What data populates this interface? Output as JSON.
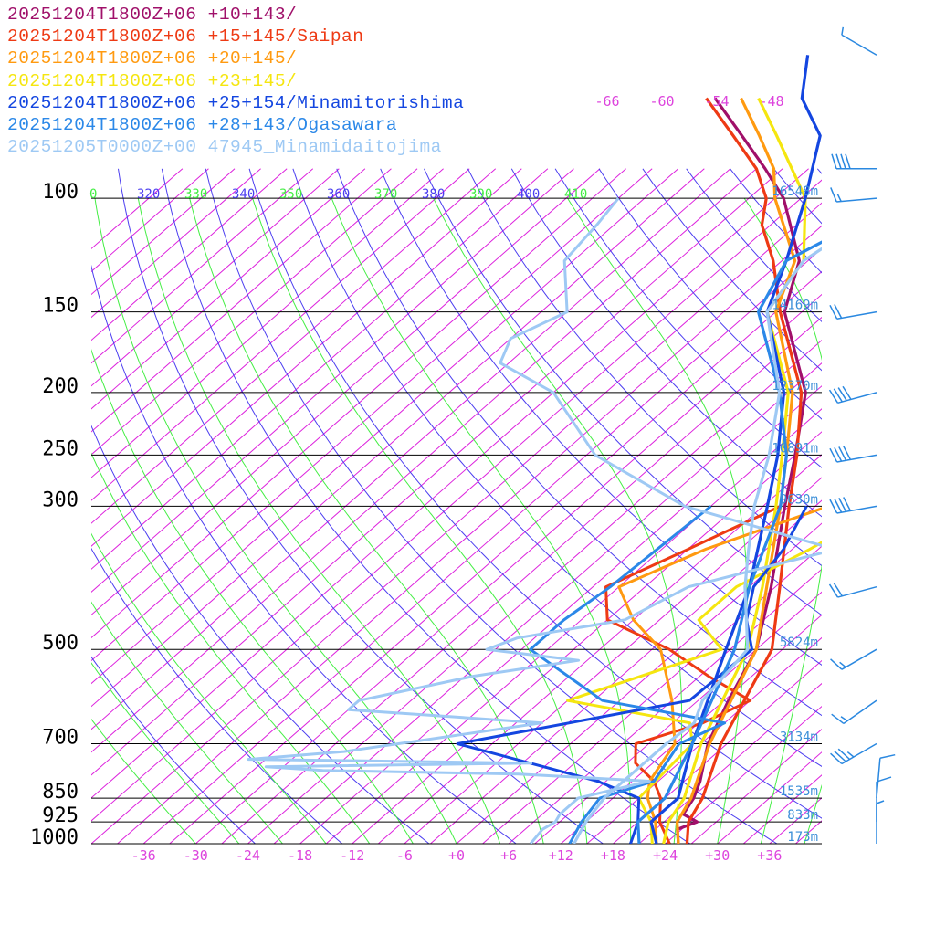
{
  "chart_data": {
    "type": "skew-t",
    "xlim": [
      -42,
      42
    ],
    "ylim_hPa": [
      1000,
      100
    ],
    "pressure_labels": [
      100,
      150,
      200,
      250,
      300,
      500,
      700,
      850,
      925,
      1000
    ],
    "temperature_tick_labels": [
      "-36",
      "-30",
      "-24",
      "-18",
      "-12",
      "-6",
      "+0",
      "+6",
      "+12",
      "+18",
      "+24",
      "+30",
      "+36"
    ],
    "temperature_top_labels": [
      "-66",
      "-60",
      "-54",
      "-48"
    ],
    "theta_labels": [
      "0",
      "320",
      "330",
      "340",
      "350",
      "360",
      "370",
      "380",
      "390",
      "400",
      "410"
    ],
    "height_labels": [
      {
        "p": 100,
        "text": "16548m"
      },
      {
        "p": 150,
        "text": "14169m"
      },
      {
        "p": 200,
        "text": "12370m"
      },
      {
        "p": 250,
        "text": "10891m"
      },
      {
        "p": 300,
        "text": "9630m"
      },
      {
        "p": 500,
        "text": "5824m"
      },
      {
        "p": 700,
        "text": "3134m"
      },
      {
        "p": 850,
        "text": "1535m"
      },
      {
        "p": 925,
        "text": "833m"
      },
      {
        "p": 1000,
        "text": "173m"
      }
    ],
    "series": [
      {
        "name": "20251204T1800Z+06 +10+143/",
        "color": "#a0106a",
        "temperature": [
          [
            1000,
            25.5
          ],
          [
            950,
            23.5
          ],
          [
            925,
            24.8
          ],
          [
            900,
            22.2
          ],
          [
            850,
            21.3
          ],
          [
            800,
            19.8
          ],
          [
            700,
            15.8
          ],
          [
            600,
            12.5
          ],
          [
            500,
            9.0
          ],
          [
            400,
            2.5
          ],
          [
            300,
            -6.5
          ],
          [
            250,
            -12
          ],
          [
            200,
            -19
          ],
          [
            150,
            -32
          ],
          [
            125,
            -37
          ],
          [
            100,
            -47
          ],
          [
            90,
            -53
          ],
          [
            80,
            -60
          ],
          [
            70,
            -68
          ]
        ],
        "dewpoint": []
      },
      {
        "name": "20251204T1800Z+06 +15+145/Saipan",
        "color": "#ee3a14",
        "temperature": [
          [
            1000,
            26.5
          ],
          [
            925,
            23.8
          ],
          [
            850,
            22.3
          ],
          [
            700,
            17.3
          ],
          [
            500,
            10.8
          ],
          [
            400,
            3.5
          ],
          [
            300,
            -6.0
          ],
          [
            250,
            -11.8
          ],
          [
            200,
            -19.5
          ],
          [
            150,
            -32.5
          ],
          [
            125,
            -40
          ],
          [
            110,
            -46
          ],
          [
            100,
            -49
          ],
          [
            90,
            -54
          ],
          [
            80,
            -61
          ],
          [
            70,
            -69
          ]
        ],
        "dewpoint": [
          [
            1000,
            24.5
          ],
          [
            925,
            20.5
          ],
          [
            850,
            17.5
          ],
          [
            800,
            14.5
          ],
          [
            750,
            10.0
          ],
          [
            700,
            7.5
          ],
          [
            650,
            12.5
          ],
          [
            600,
            15.0
          ],
          [
            550,
            7.0
          ],
          [
            500,
            -1.0
          ],
          [
            450,
            -12.0
          ],
          [
            400,
            -16.5
          ],
          [
            350,
            -12.0
          ],
          [
            300,
            -7.0
          ]
        ]
      },
      {
        "name": "20251204T1800Z+06 +20+145/",
        "color": "#ff9a10",
        "temperature": [
          [
            1000,
            25.5
          ],
          [
            925,
            22.5
          ],
          [
            850,
            21.0
          ],
          [
            700,
            16.0
          ],
          [
            500,
            9.0
          ],
          [
            400,
            2.0
          ],
          [
            300,
            -7.0
          ],
          [
            250,
            -13.0
          ],
          [
            200,
            -20.5
          ],
          [
            150,
            -33.0
          ],
          [
            125,
            -37.5
          ],
          [
            100,
            -48.0
          ],
          [
            90,
            -52.0
          ],
          [
            80,
            -58.0
          ],
          [
            70,
            -65.0
          ]
        ],
        "dewpoint": [
          [
            1000,
            23.0
          ],
          [
            925,
            20.0
          ],
          [
            850,
            16.0
          ],
          [
            800,
            14.0
          ],
          [
            700,
            12.0
          ],
          [
            600,
            6.0
          ],
          [
            500,
            -2.0
          ],
          [
            450,
            -9.0
          ],
          [
            400,
            -15.0
          ],
          [
            350,
            -10.0
          ],
          [
            300,
            -1.5
          ]
        ]
      },
      {
        "name": "20251204T1800Z+06 +23+145/",
        "color": "#f5e60f",
        "temperature": [
          [
            1000,
            23.8
          ],
          [
            925,
            21.5
          ],
          [
            850,
            20.2
          ],
          [
            700,
            15.0
          ],
          [
            500,
            8.0
          ],
          [
            400,
            1.5
          ],
          [
            300,
            -7.5
          ],
          [
            250,
            -13.5
          ],
          [
            200,
            -21.0
          ],
          [
            150,
            -34.0
          ],
          [
            125,
            -36.5
          ],
          [
            100,
            -44.5
          ],
          [
            80,
            -56.0
          ],
          [
            70,
            -63.0
          ]
        ],
        "dewpoint": [
          [
            1000,
            22.5
          ],
          [
            925,
            19.5
          ],
          [
            850,
            15.0
          ],
          [
            700,
            14.0
          ],
          [
            650,
            11.0
          ],
          [
            600,
            -6.0
          ],
          [
            500,
            5.0
          ],
          [
            450,
            -1.5
          ],
          [
            400,
            -1.5
          ],
          [
            350,
            2.0
          ],
          [
            300,
            5.0
          ]
        ]
      },
      {
        "name": "20251204T1800Z+06 +25+154/Minamitorishima",
        "color": "#1446e0",
        "temperature": [
          [
            1000,
            23.0
          ],
          [
            925,
            19.5
          ],
          [
            850,
            19.5
          ],
          [
            700,
            14.0
          ],
          [
            500,
            5.5
          ],
          [
            400,
            0.0
          ],
          [
            300,
            -8.5
          ],
          [
            250,
            -14.0
          ],
          [
            200,
            -21.5
          ],
          [
            150,
            -34.0
          ],
          [
            125,
            -38.5
          ],
          [
            100,
            -44.5
          ],
          [
            80,
            -51.0
          ],
          [
            70,
            -58.0
          ],
          [
            60,
            -63.0
          ]
        ],
        "dewpoint": [
          [
            1000,
            20.0
          ],
          [
            925,
            18.0
          ],
          [
            850,
            15.0
          ],
          [
            800,
            8.0
          ],
          [
            700,
            -13.0
          ],
          [
            600,
            8.0
          ],
          [
            500,
            8.5
          ],
          [
            450,
            4.0
          ],
          [
            400,
            0.5
          ],
          [
            350,
            -1.0
          ],
          [
            300,
            -4.0
          ]
        ]
      },
      {
        "name": "20251204T1800Z+06 +28+143/Ogasawara",
        "color": "#2b88e8",
        "temperature": [
          [
            1000,
            21.0
          ],
          [
            925,
            18.0
          ],
          [
            850,
            18.0
          ],
          [
            700,
            14.0
          ],
          [
            500,
            6.5
          ],
          [
            400,
            0.0
          ],
          [
            300,
            -7.0
          ],
          [
            250,
            -13.0
          ],
          [
            200,
            -22.0
          ],
          [
            150,
            -35.0
          ],
          [
            125,
            -38.5
          ],
          [
            100,
            -33.0
          ],
          [
            80,
            -37.5
          ],
          [
            70,
            -36.5
          ],
          [
            60,
            -40.0
          ]
        ],
        "dewpoint": [
          [
            1000,
            13.0
          ],
          [
            925,
            11.5
          ],
          [
            850,
            10.5
          ],
          [
            800,
            14.5
          ],
          [
            700,
            12.5
          ],
          [
            650,
            15.0
          ],
          [
            600,
            -2.0
          ],
          [
            500,
            -17.0
          ],
          [
            450,
            -17.0
          ],
          [
            400,
            -16.0
          ],
          [
            300,
            -15.0
          ]
        ]
      },
      {
        "name": "20251205T0000Z+00 47945_Minamidaitojima",
        "color": "#9ec9f4",
        "temperature": [
          [
            1000,
            13.5
          ],
          [
            925,
            12.0
          ],
          [
            850,
            11.0
          ],
          [
            750,
            11.0
          ],
          [
            700,
            11.0
          ],
          [
            650,
            11.5
          ],
          [
            600,
            9.5
          ],
          [
            500,
            8.0
          ],
          [
            400,
            -0.5
          ],
          [
            350,
            -5.0
          ],
          [
            300,
            -10.0
          ],
          [
            250,
            -15.0
          ],
          [
            200,
            -22.0
          ],
          [
            150,
            -34.0
          ],
          [
            125,
            -36.5
          ],
          [
            110,
            -35.0
          ],
          [
            100,
            -33.0
          ]
        ],
        "dewpoint": [
          [
            1000,
            8.5
          ],
          [
            950,
            8.0
          ],
          [
            925,
            8.5
          ],
          [
            900,
            8.0
          ],
          [
            850,
            8.0
          ],
          [
            800,
            14.0
          ],
          [
            780,
            -2.0
          ],
          [
            770,
            -25.0
          ],
          [
            760,
            -32.0
          ],
          [
            750,
            -2.0
          ],
          [
            740,
            -35.0
          ],
          [
            720,
            -25.0
          ],
          [
            650,
            -6.0
          ],
          [
            620,
            -30.0
          ],
          [
            600,
            -30.0
          ],
          [
            550,
            -20.0
          ],
          [
            520,
            -10.0
          ],
          [
            500,
            -22.0
          ],
          [
            480,
            -20.0
          ],
          [
            450,
            -10.0
          ],
          [
            400,
            -7.0
          ],
          [
            350,
            5.0
          ],
          [
            300,
            -18.0
          ],
          [
            250,
            -35.0
          ],
          [
            200,
            -48.0
          ],
          [
            180,
            -58.0
          ],
          [
            165,
            -60.0
          ],
          [
            150,
            -57.0
          ],
          [
            125,
            -64.0
          ],
          [
            110,
            -65.0
          ],
          [
            100,
            -66.0
          ]
        ]
      }
    ],
    "wind_barbs": [
      {
        "p": 60,
        "direction_deg": 300,
        "speed_kt": 5
      },
      {
        "p": 90,
        "direction_deg": 270,
        "speed_kt": 40
      },
      {
        "p": 100,
        "direction_deg": 265,
        "speed_kt": 15
      },
      {
        "p": 150,
        "direction_deg": 260,
        "speed_kt": 20
      },
      {
        "p": 200,
        "direction_deg": 255,
        "speed_kt": 40
      },
      {
        "p": 250,
        "direction_deg": 260,
        "speed_kt": 40
      },
      {
        "p": 300,
        "direction_deg": 260,
        "speed_kt": 40
      },
      {
        "p": 400,
        "direction_deg": 255,
        "speed_kt": 20
      },
      {
        "p": 500,
        "direction_deg": 240,
        "speed_kt": 15
      },
      {
        "p": 600,
        "direction_deg": 235,
        "speed_kt": 15
      },
      {
        "p": 700,
        "direction_deg": 240,
        "speed_kt": 35
      },
      {
        "p": 850,
        "direction_deg": 5,
        "speed_kt": 10
      },
      {
        "p": 925,
        "direction_deg": 360,
        "speed_kt": 10
      },
      {
        "p": 1000,
        "direction_deg": 360,
        "speed_kt": 5
      }
    ],
    "colors": {
      "pressure_lines": "#000000",
      "dry_adiabats": "#4c3ef0",
      "moist_adiabats": "#44ee44",
      "isotherms": "#dd22dd",
      "temperature_labels": "#dd44dd",
      "height_labels": "#3a8ed8",
      "barbs": "#2a88e0"
    }
  }
}
